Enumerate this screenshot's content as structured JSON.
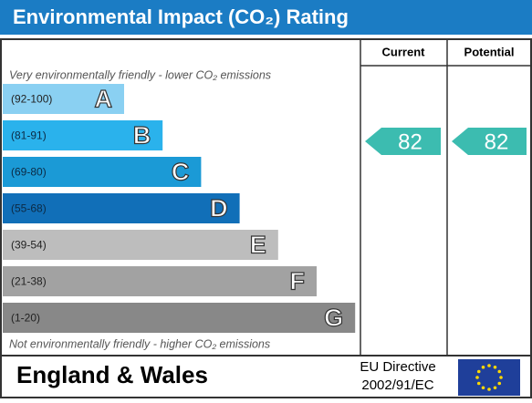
{
  "title": "Environmental Impact (CO₂) Rating",
  "columns": [
    "Current",
    "Potential"
  ],
  "top_note": "Very environmentally friendly - lower CO₂ emissions",
  "bottom_note": "Not environmentally friendly - higher CO₂ emissions",
  "bands": [
    {
      "range": "(92-100)",
      "letter": "A",
      "color": "#8ad0f2"
    },
    {
      "range": "(81-91)",
      "letter": "B",
      "color": "#2ab2ec"
    },
    {
      "range": "(69-80)",
      "letter": "C",
      "color": "#1b9ad6"
    },
    {
      "range": "(55-68)",
      "letter": "D",
      "color": "#116fb8"
    },
    {
      "range": "(39-54)",
      "letter": "E",
      "color": "#bdbdbd"
    },
    {
      "range": "(21-38)",
      "letter": "F",
      "color": "#a2a2a2"
    },
    {
      "range": "(1-20)",
      "letter": "G",
      "color": "#888888"
    }
  ],
  "current": 82,
  "potential": 82,
  "arrow_color": "#3cbcb0",
  "footer": {
    "region": "England & Wales",
    "directive": "EU Directive",
    "directive_code": "2002/91/EC"
  }
}
